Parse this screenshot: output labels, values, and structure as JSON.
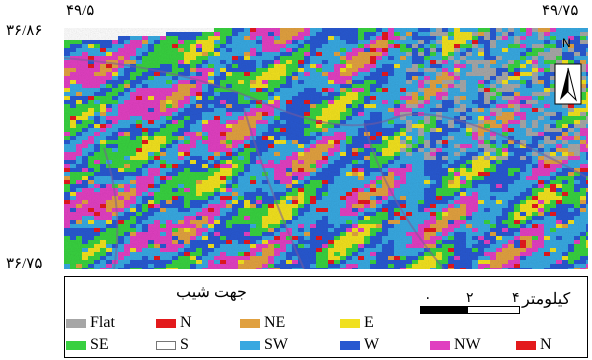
{
  "coords": {
    "top_left_lon": "۴۹/۵",
    "top_right_lon": "۴۹/۷۵",
    "top_lat": "۳۶/۸۶",
    "bottom_lat": "۳۶/۷۵"
  },
  "north_label": "N",
  "legend": {
    "title": "جهت شیب",
    "scale_unit": "کیلومتر",
    "scale_ticks": [
      "۰",
      "۲",
      "۴"
    ],
    "items": [
      {
        "label": "Flat",
        "color": "#a6a6a6"
      },
      {
        "label": "N",
        "color": "#e31a1c"
      },
      {
        "label": "NE",
        "color": "#e0a040"
      },
      {
        "label": "E",
        "color": "#f0e020"
      },
      {
        "label": "SE",
        "color": "#38d040"
      },
      {
        "label": "S",
        "color": "#ffffff"
      },
      {
        "label": "SW",
        "color": "#38a8e0"
      },
      {
        "label": "W",
        "color": "#2858d0"
      },
      {
        "label": "NW",
        "color": "#e040c0"
      },
      {
        "label": "N",
        "color": "#e31a1c"
      }
    ]
  }
}
